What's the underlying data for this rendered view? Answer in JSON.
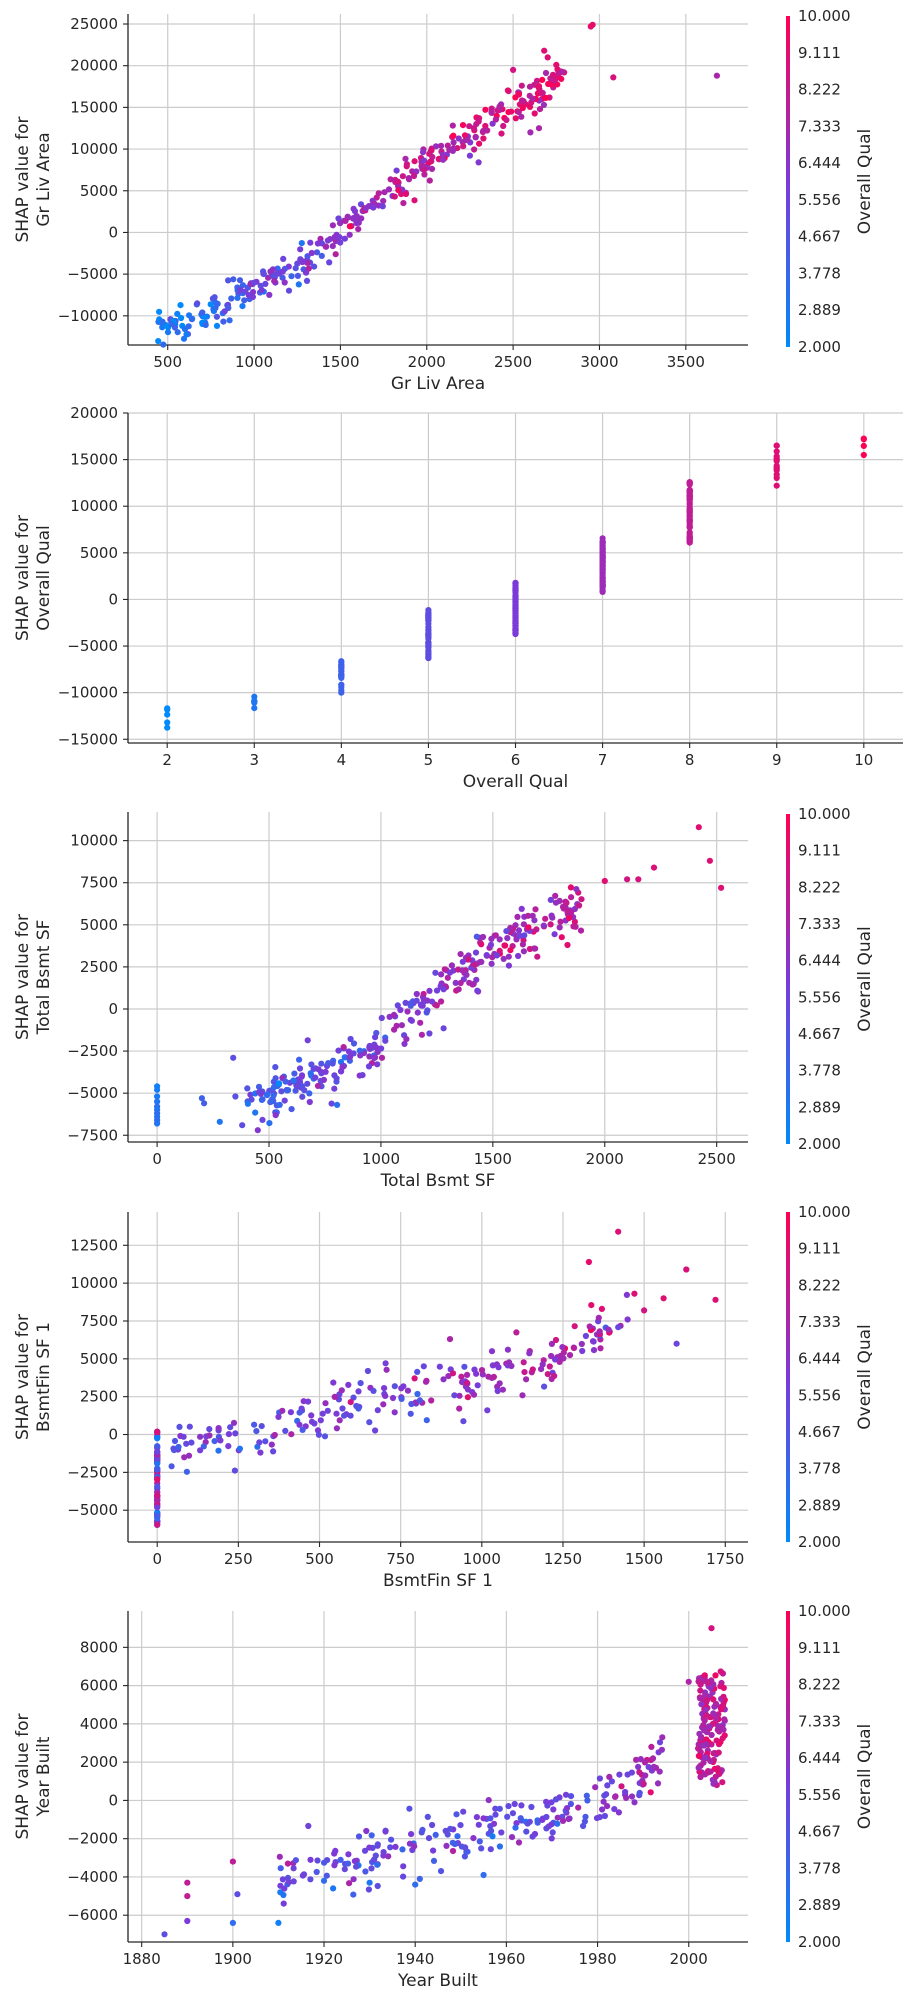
{
  "colors": {
    "low": "#008afb",
    "mid": "#7c3ad8",
    "high": "#ff0052",
    "grid": "#cccccc",
    "axis": "#262626"
  },
  "chart_data": [
    {
      "type": "scatter",
      "title": "",
      "xlabel": "Gr Liv Area",
      "ylabel": [
        "SHAP value for",
        "Gr Liv Area"
      ],
      "xlim": [
        270,
        3860
      ],
      "ylim": [
        -13500,
        26200
      ],
      "xticks": [
        500,
        1000,
        1500,
        2000,
        2500,
        3000,
        3500
      ],
      "yticks": [
        -10000,
        -5000,
        0,
        5000,
        10000,
        15000,
        20000,
        25000
      ],
      "grid": true,
      "colorbar": {
        "label": "Overall Qual",
        "ticks": [
          "10.000",
          "9.111",
          "8.222",
          "7.333",
          "6.444",
          "5.556",
          "4.667",
          "3.778",
          "2.889",
          "2.000"
        ]
      },
      "trend": {
        "segments": [
          [
            440,
            -11800,
            2.5
          ],
          [
            800,
            -9200,
            4
          ],
          [
            1000,
            -6500,
            5
          ],
          [
            1250,
            -4000,
            5.5
          ],
          [
            1500,
            -400,
            6.5
          ],
          [
            1700,
            4500,
            7.2
          ],
          [
            2000,
            8200,
            7.8
          ],
          [
            2300,
            12500,
            8.2
          ],
          [
            2600,
            16000,
            8.6
          ],
          [
            2800,
            19500,
            9
          ]
        ],
        "count": 360,
        "noise": 1300
      },
      "points": [
        [
          2950,
          24700,
          9.2
        ],
        [
          2960,
          24900,
          9.3
        ],
        [
          3080,
          18600,
          8.8
        ],
        [
          3680,
          18800,
          7.4
        ],
        [
          2680,
          21800,
          9
        ],
        [
          2700,
          21000,
          8.8
        ],
        [
          2750,
          20100,
          9.1
        ],
        [
          2500,
          19500,
          8.6
        ],
        [
          2550,
          17600,
          8.3
        ],
        [
          2600,
          12000,
          7.2
        ],
        [
          2650,
          12500,
          7.4
        ],
        [
          2300,
          8400,
          6.2
        ],
        [
          2250,
          9200,
          6
        ],
        [
          470,
          -10700,
          3.5
        ],
        [
          600,
          -11600,
          3.2
        ],
        [
          640,
          -10400,
          3.6
        ],
        [
          700,
          -9600,
          4
        ],
        [
          720,
          -11100,
          3.7
        ]
      ]
    },
    {
      "type": "scatter",
      "title": "",
      "xlabel": "Overall Qual",
      "ylabel": [
        "SHAP value for",
        "Overall Qual"
      ],
      "xlim": [
        1.55,
        10.45
      ],
      "ylim": [
        -15400,
        20000
      ],
      "xticks": [
        2,
        3,
        4,
        5,
        6,
        7,
        8,
        9,
        10
      ],
      "yticks": [
        -15000,
        -10000,
        -5000,
        0,
        5000,
        10000,
        15000,
        20000
      ],
      "grid": true,
      "colorbar": null,
      "groups": [
        {
          "x": 2,
          "ymin": -13800,
          "ymax": -11500,
          "n": 5
        },
        {
          "x": 3,
          "ymin": -11800,
          "ymax": -10200,
          "n": 6
        },
        {
          "x": 4,
          "ymin": -10200,
          "ymax": -6400,
          "n": 22
        },
        {
          "x": 5,
          "ymin": -6400,
          "ymax": -1000,
          "n": 45
        },
        {
          "x": 6,
          "ymin": -3800,
          "ymax": 1800,
          "n": 70
        },
        {
          "x": 7,
          "ymin": 800,
          "ymax": 6800,
          "n": 80
        },
        {
          "x": 8,
          "ymin": 6000,
          "ymax": 12600,
          "n": 55
        },
        {
          "x": 9,
          "ymin": 12200,
          "ymax": 16800,
          "n": 14
        },
        {
          "x": 10,
          "ymin": 15200,
          "ymax": 18400,
          "n": 4
        }
      ]
    },
    {
      "type": "scatter",
      "title": "",
      "xlabel": "Total Bsmt SF",
      "ylabel": [
        "SHAP value for",
        "Total Bsmt SF"
      ],
      "xlim": [
        -130,
        2640
      ],
      "ylim": [
        -7900,
        11700
      ],
      "xticks": [
        0,
        500,
        1000,
        1500,
        2000,
        2500
      ],
      "yticks": [
        -7500,
        -5000,
        -2500,
        0,
        2500,
        5000,
        7500,
        10000
      ],
      "grid": true,
      "colorbar": {
        "label": "Overall Qual",
        "ticks": [
          "10.000",
          "9.111",
          "8.222",
          "7.333",
          "6.444",
          "5.556",
          "4.667",
          "3.778",
          "2.889",
          "2.000"
        ]
      },
      "trend": {
        "segments": [
          [
            400,
            -5500,
            4.2
          ],
          [
            700,
            -4000,
            5
          ],
          [
            900,
            -2800,
            5.3
          ],
          [
            1100,
            -700,
            5.8
          ],
          [
            1300,
            1500,
            6.6
          ],
          [
            1500,
            3300,
            7
          ],
          [
            1700,
            5000,
            7.3
          ],
          [
            1900,
            6200,
            8
          ]
        ],
        "count": 330,
        "noise": 900
      },
      "points": [
        [
          2420,
          10800,
          9
        ],
        [
          2470,
          8800,
          9
        ],
        [
          2520,
          7200,
          9
        ],
        [
          2220,
          8400,
          8.8
        ],
        [
          2100,
          7700,
          8.6
        ],
        [
          2150,
          7700,
          8.7
        ],
        [
          2000,
          7600,
          9
        ],
        [
          0,
          -4600,
          2.5
        ],
        [
          0,
          -4800,
          2.6
        ],
        [
          0,
          -5200,
          2.8
        ],
        [
          0,
          -5500,
          3
        ],
        [
          0,
          -5800,
          3.3
        ],
        [
          0,
          -6000,
          3
        ],
        [
          0,
          -6200,
          3.5
        ],
        [
          0,
          -6400,
          3.2
        ],
        [
          0,
          -6600,
          3.4
        ],
        [
          0,
          -6800,
          3.1
        ],
        [
          200,
          -5300,
          4
        ],
        [
          210,
          -5600,
          4.2
        ],
        [
          280,
          -6700,
          3
        ],
        [
          350,
          -5200,
          4.8
        ],
        [
          380,
          -6900,
          5
        ],
        [
          450,
          -7200,
          6.2
        ],
        [
          530,
          -6300,
          6.3
        ],
        [
          340,
          -2900,
          5
        ]
      ]
    },
    {
      "type": "scatter",
      "title": "",
      "xlabel": "BsmtFin SF 1",
      "ylabel": [
        "SHAP value for",
        "BsmtFin SF 1"
      ],
      "xlim": [
        -90,
        1820
      ],
      "ylim": [
        -7100,
        14700
      ],
      "xticks": [
        0,
        250,
        500,
        750,
        1000,
        1250,
        1500,
        1750
      ],
      "yticks": [
        -5000,
        -2500,
        0,
        2500,
        5000,
        7500,
        10000,
        12500
      ],
      "grid": true,
      "colorbar": {
        "label": "Overall Qual",
        "ticks": [
          "10.000",
          "9.111",
          "8.222",
          "7.333",
          "6.444",
          "5.556",
          "4.667",
          "3.778",
          "2.889",
          "2.000"
        ]
      },
      "trend": {
        "segments": [
          [
            40,
            -1200,
            5.2
          ],
          [
            300,
            0,
            5.4
          ],
          [
            600,
            1800,
            6
          ],
          [
            900,
            3200,
            6.2
          ],
          [
            1200,
            5000,
            7
          ],
          [
            1450,
            7500,
            7.5
          ]
        ],
        "count": 230,
        "noise": 1100
      },
      "points": [
        [
          1420,
          13400,
          9
        ],
        [
          1330,
          11400,
          9.2
        ],
        [
          1630,
          10900,
          8.8
        ],
        [
          1720,
          8900,
          9
        ],
        [
          1560,
          9000,
          9
        ],
        [
          1600,
          6000,
          5.5
        ],
        [
          1470,
          9300,
          9
        ],
        [
          1500,
          8200,
          8.5
        ],
        [
          1370,
          8300,
          9
        ]
      ],
      "zero_column": {
        "x": 0,
        "ymin": -6000,
        "ymax": 200,
        "n": 90
      }
    },
    {
      "type": "scatter",
      "title": "",
      "xlabel": "Year Built",
      "ylabel": [
        "SHAP value for",
        "Year Built"
      ],
      "xlim": [
        1877,
        2013
      ],
      "ylim": [
        -7400,
        9900
      ],
      "xticks": [
        1880,
        1900,
        1920,
        1940,
        1960,
        1980,
        2000
      ],
      "yticks": [
        -6000,
        -4000,
        -2000,
        0,
        2000,
        4000,
        6000,
        8000
      ],
      "grid": true,
      "colorbar": {
        "label": "Overall Qual",
        "ticks": [
          "10.000",
          "9.111",
          "8.222",
          "7.333",
          "6.444",
          "5.556",
          "4.667",
          "3.778",
          "2.889",
          "2.000"
        ]
      },
      "trend": {
        "segments": [
          [
            1910,
            -4000,
            5
          ],
          [
            1925,
            -3200,
            5.2
          ],
          [
            1940,
            -2300,
            5
          ],
          [
            1955,
            -1700,
            5
          ],
          [
            1965,
            -1100,
            5.2
          ],
          [
            1975,
            -300,
            5.5
          ],
          [
            1985,
            500,
            6
          ],
          [
            1995,
            1900,
            7
          ]
        ],
        "count": 230,
        "noise": 850
      },
      "cluster": {
        "xmin": 2002,
        "xmax": 2008,
        "ymin": 800,
        "ymax": 6800,
        "n": 140
      },
      "points": [
        [
          1885,
          -7000,
          5
        ],
        [
          1890,
          -4300,
          8
        ],
        [
          1890,
          -5000,
          8
        ],
        [
          1890,
          -6300,
          6
        ],
        [
          1900,
          -3200,
          8
        ],
        [
          1900,
          -6400,
          3.5
        ],
        [
          1901,
          -4900,
          5
        ],
        [
          1910,
          -6400,
          2.5
        ],
        [
          1920,
          -4200,
          3.5
        ],
        [
          1922,
          -4600,
          3
        ],
        [
          1930,
          -4300,
          3
        ],
        [
          1940,
          -4400,
          3.5
        ],
        [
          1941,
          -4100,
          4
        ],
        [
          1955,
          -3900,
          3.5
        ],
        [
          2005,
          9000,
          8.7
        ],
        [
          2004,
          6200,
          8
        ],
        [
          2000,
          6200,
          7.5
        ]
      ]
    }
  ]
}
